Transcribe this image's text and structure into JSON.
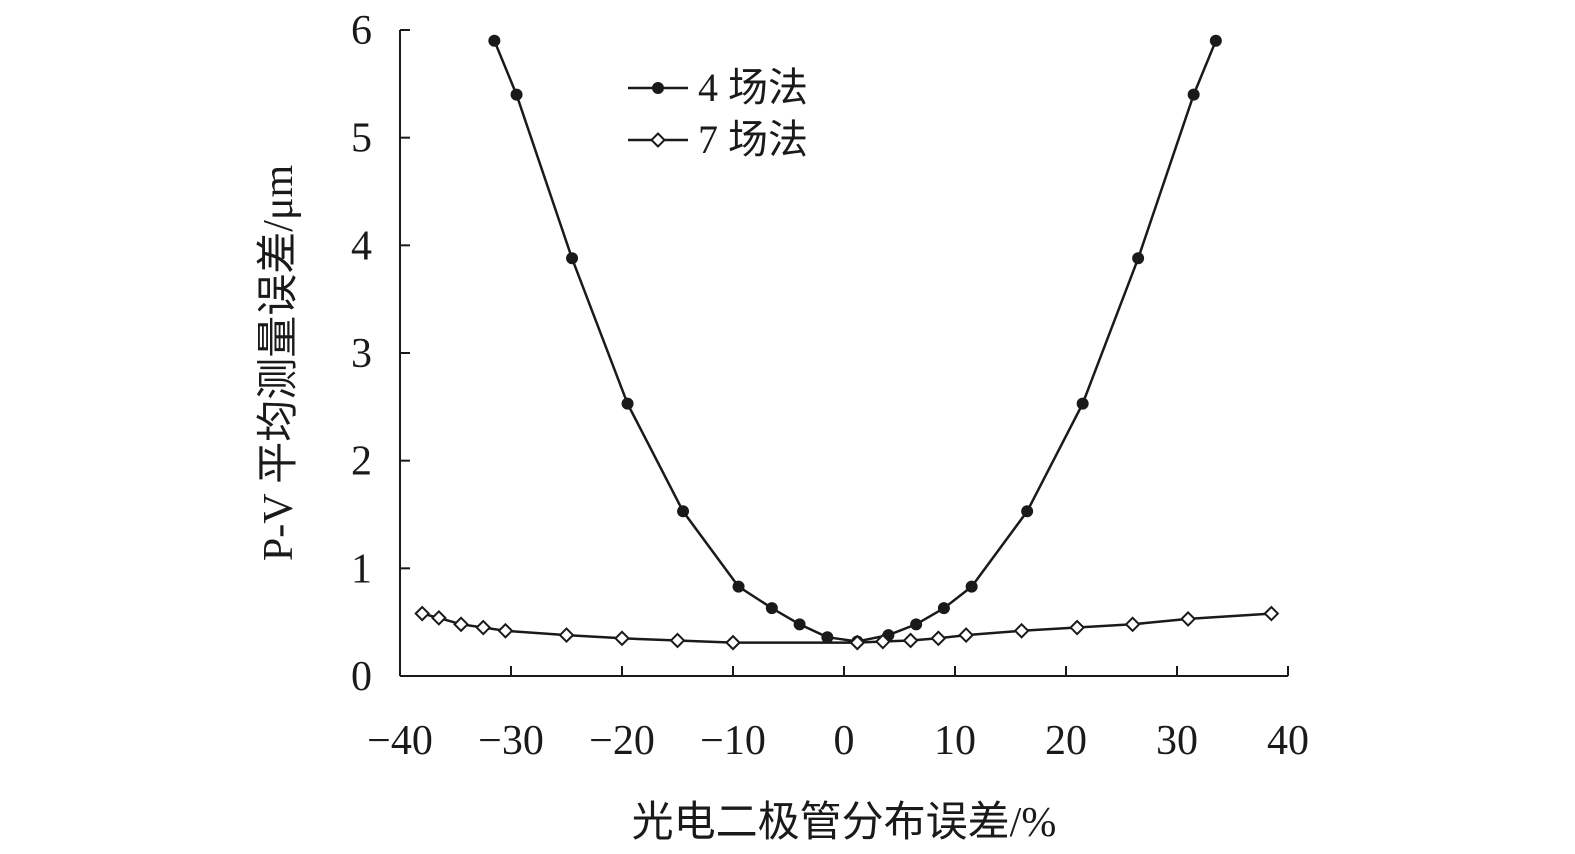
{
  "chart_data": {
    "type": "line",
    "xlabel": "光电二极管分布误差/%",
    "ylabel": "P-V 平均测量误差/μm",
    "xlim": [
      -40,
      40
    ],
    "ylim": [
      0,
      6
    ],
    "xticks": [
      "−40",
      "−30",
      "−20",
      "−10",
      "0",
      "10",
      "20",
      "30",
      "40"
    ],
    "yticks": [
      "0",
      "1",
      "2",
      "3",
      "4",
      "5",
      "6"
    ],
    "legend_position": "top-left",
    "grid": false,
    "series": [
      {
        "name": "4 场法",
        "marker": "filled-circle",
        "color": "#1a1a1a",
        "points": [
          [
            -31.5,
            5.9
          ],
          [
            -29.5,
            5.4
          ],
          [
            -24.5,
            3.88
          ],
          [
            -19.5,
            2.53
          ],
          [
            -14.5,
            1.53
          ],
          [
            -9.5,
            0.83
          ],
          [
            -6.5,
            0.63
          ],
          [
            -4,
            0.48
          ],
          [
            -1.5,
            0.36
          ],
          [
            1.2,
            0.32
          ],
          [
            4,
            0.38
          ],
          [
            6.5,
            0.48
          ],
          [
            9,
            0.63
          ],
          [
            11.5,
            0.83
          ],
          [
            16.5,
            1.53
          ],
          [
            21.5,
            2.53
          ],
          [
            26.5,
            3.88
          ],
          [
            31.5,
            5.4
          ],
          [
            33.5,
            5.9
          ]
        ]
      },
      {
        "name": "7 场法",
        "marker": "open-diamond",
        "color": "#1a1a1a",
        "points": [
          [
            -38,
            0.58
          ],
          [
            -36.5,
            0.54
          ],
          [
            -34.5,
            0.48
          ],
          [
            -32.5,
            0.45
          ],
          [
            -30.5,
            0.42
          ],
          [
            -25,
            0.38
          ],
          [
            -20,
            0.35
          ],
          [
            -15,
            0.33
          ],
          [
            -10,
            0.31
          ],
          [
            1.2,
            0.31
          ],
          [
            3.5,
            0.32
          ],
          [
            6,
            0.33
          ],
          [
            8.5,
            0.35
          ],
          [
            11,
            0.38
          ],
          [
            16,
            0.42
          ],
          [
            21,
            0.45
          ],
          [
            26,
            0.48
          ],
          [
            31,
            0.53
          ],
          [
            38.5,
            0.58
          ]
        ]
      }
    ]
  }
}
